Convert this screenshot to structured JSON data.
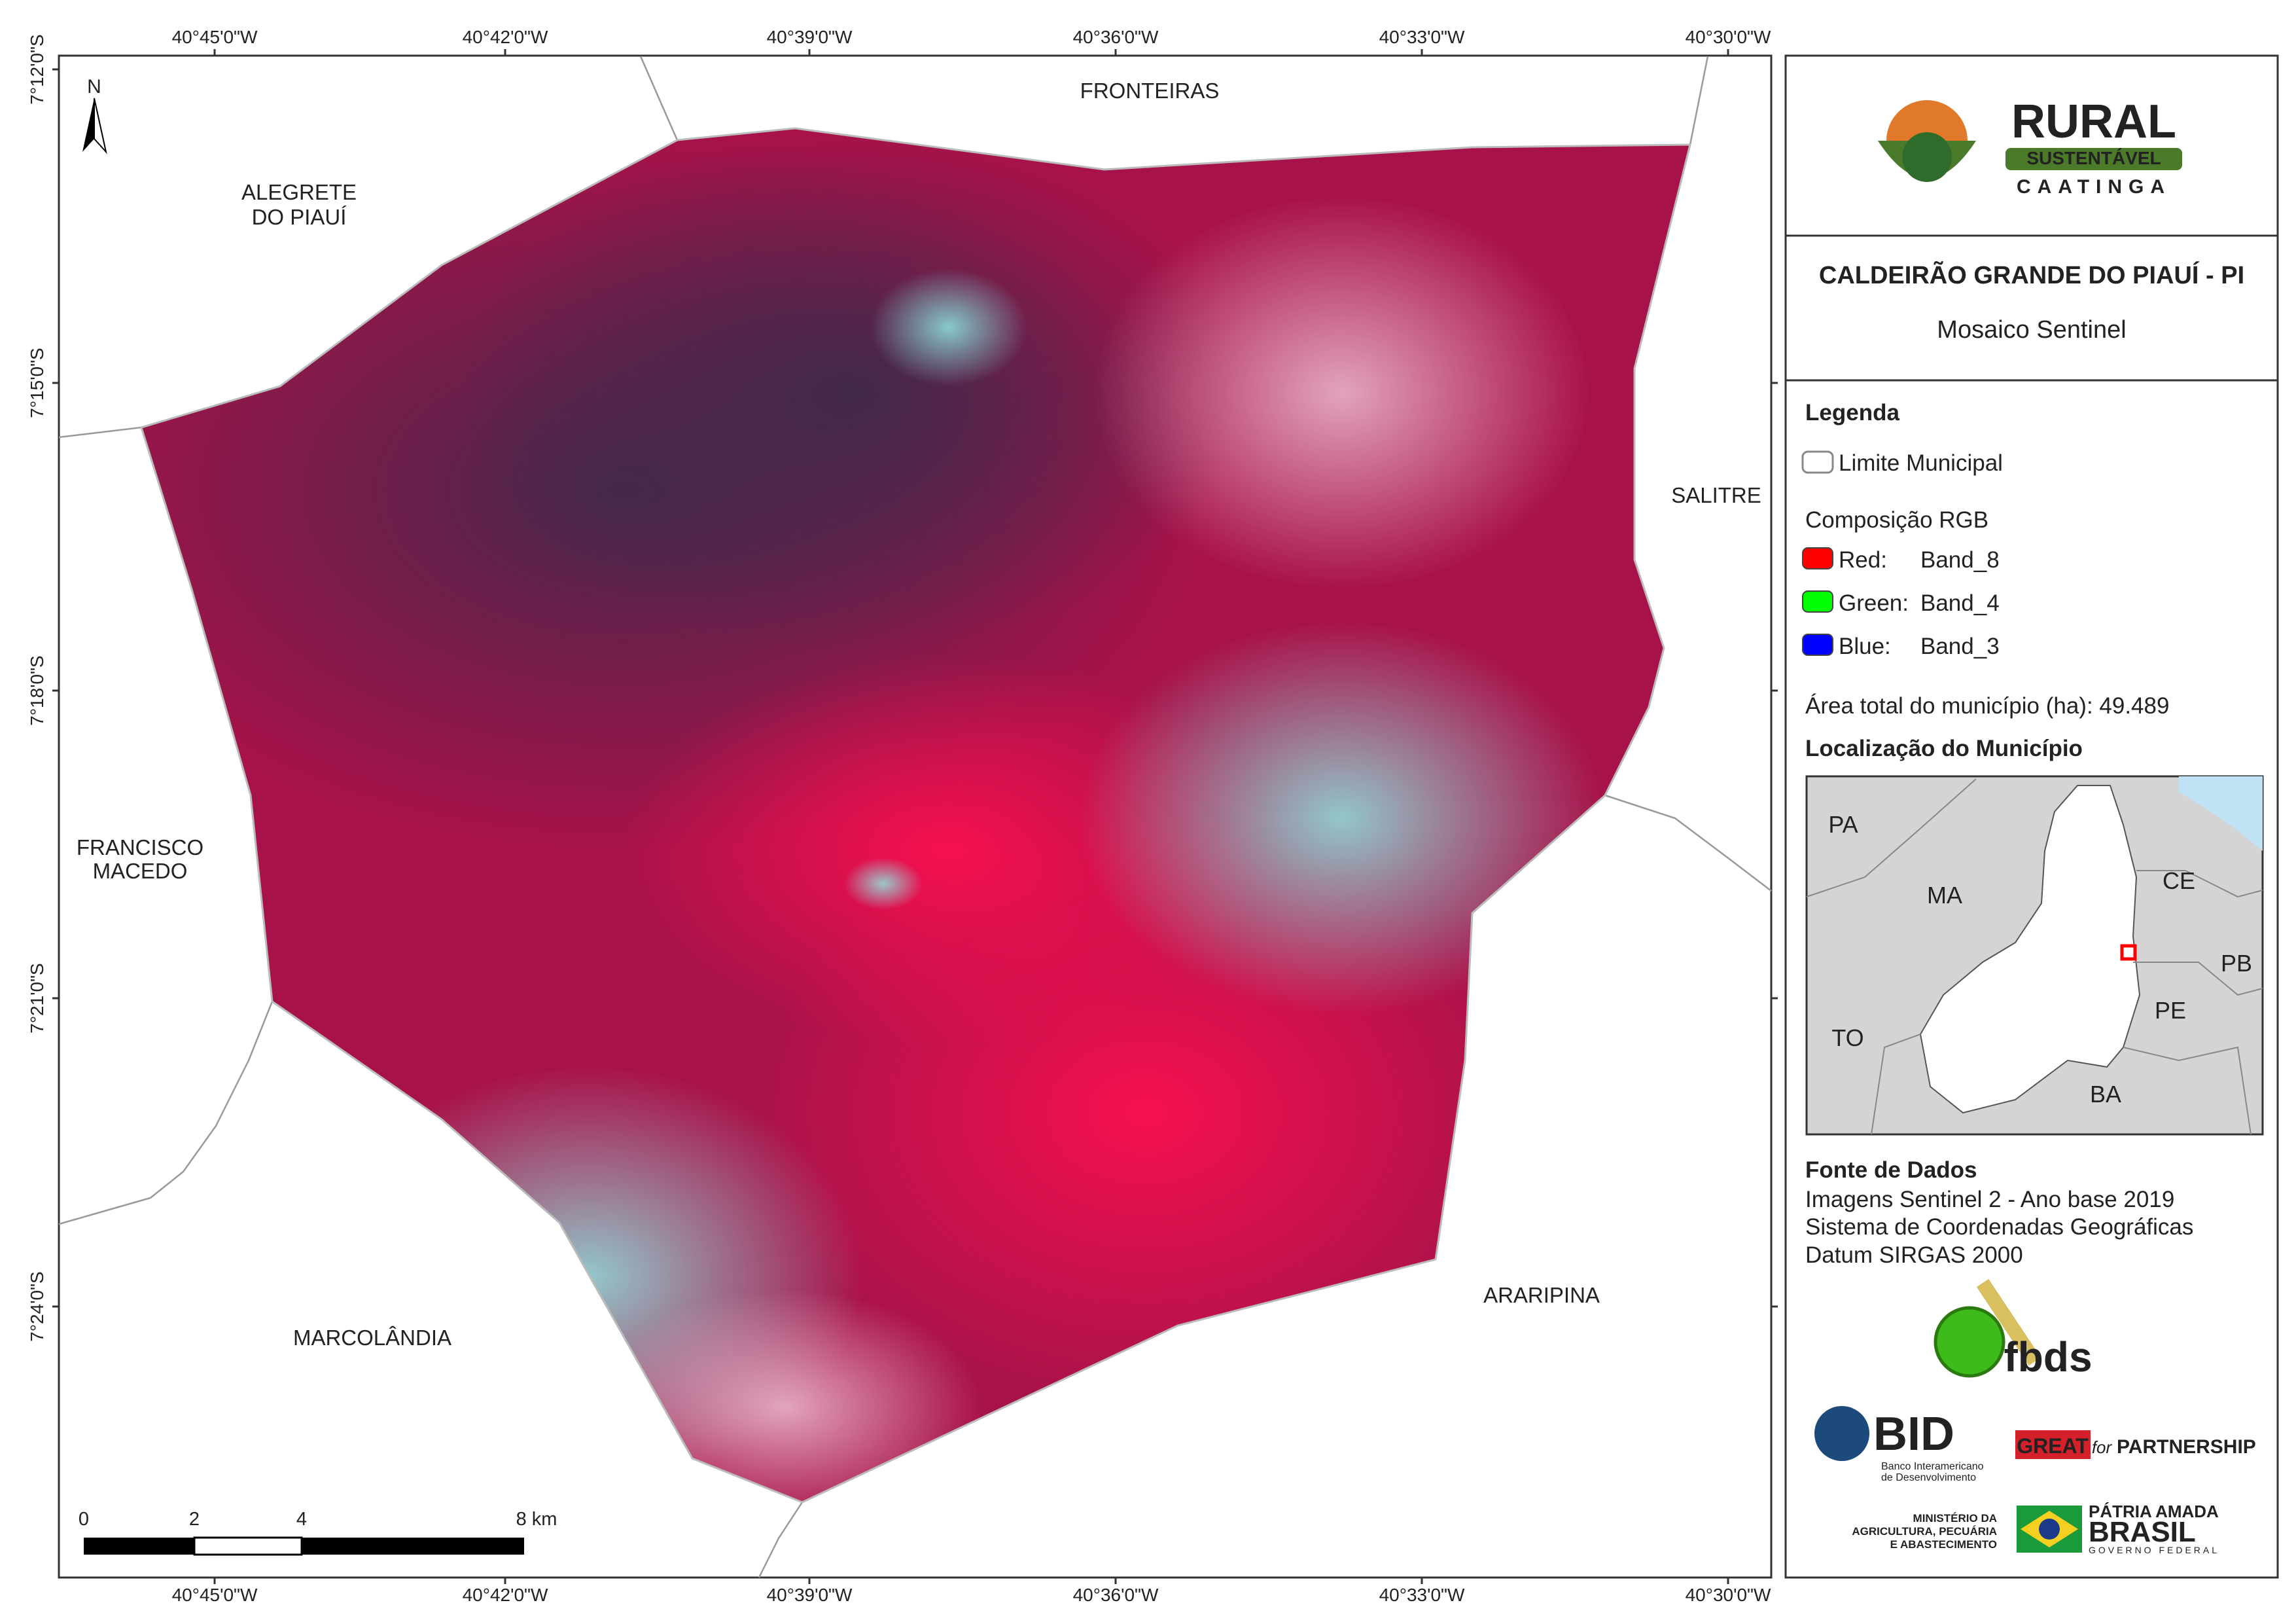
{
  "map": {
    "top_lon_labels": [
      "40°45'0\"W",
      "40°42'0\"W",
      "40°39'0\"W",
      "40°36'0\"W",
      "40°33'0\"W",
      "40°30'0\"W"
    ],
    "bottom_lon_labels": [
      "40°45'0\"W",
      "40°42'0\"W",
      "40°39'0\"W",
      "40°36'0\"W",
      "40°33'0\"W",
      "40°30'0\"W"
    ],
    "left_lat_labels": [
      "7°12'0\"S",
      "7°15'0\"S",
      "7°18'0\"S",
      "7°21'0\"S",
      "7°24'0\"S"
    ],
    "north": "N",
    "places": [
      {
        "lines": [
          "FRONTEIRAS"
        ]
      },
      {
        "lines": [
          "ALEGRETE",
          "DO PIAUÍ"
        ]
      },
      {
        "lines": [
          "SALITRE"
        ]
      },
      {
        "lines": [
          "FRANCISCO",
          "MACEDO"
        ]
      },
      {
        "lines": [
          "MARCOLÂNDIA"
        ]
      },
      {
        "lines": [
          "ARARIPINA"
        ]
      }
    ],
    "scale_labels": [
      "0",
      "2",
      "4",
      "8 km"
    ]
  },
  "panel": {
    "logo": {
      "line1": "RURAL",
      "line2": "SUSTENTÁVEL",
      "line3": "CAATINGA"
    },
    "title": "CALDEIRÃO GRANDE DO PIAUÍ - PI",
    "subtitle": "Mosaico Sentinel",
    "legend": {
      "heading": "Legenda",
      "boundary": "Limite Municipal",
      "rgb_heading": "Composição RGB",
      "bands": [
        {
          "label": "Red:",
          "band": "Band_8",
          "color": "#ff0000"
        },
        {
          "label": "Green:",
          "band": "Band_4",
          "color": "#00ff00"
        },
        {
          "label": "Blue:",
          "band": "Band_3",
          "color": "#0000ff"
        }
      ],
      "area_label": "Área total do município (ha):",
      "area_value": "49.489"
    },
    "location": {
      "heading": "Localização do Município",
      "states": [
        "PA",
        "MA",
        "CE",
        "PB",
        "PE",
        "TO",
        "BA"
      ]
    },
    "sources": {
      "heading": "Fonte de Dados",
      "lines": [
        "Imagens Sentinel 2 - Ano base 2019",
        "Sistema de Coordenadas Geográficas",
        "Datum SIRGAS 2000"
      ]
    },
    "logos": {
      "fbds": "fbds",
      "bid": "BID",
      "bid_sub": [
        "Banco Interamericano",
        "de Desenvolvimento"
      ],
      "great": "GREAT",
      "great_for": "for",
      "great_partnership": "PARTNERSHIP",
      "ministry": [
        "MINISTÉRIO DA",
        "AGRICULTURA, PECUÁRIA",
        "E ABASTECIMENTO"
      ],
      "brasil": [
        "PÁTRIA AMADA",
        "BRASIL",
        "GOVERNO FEDERAL"
      ]
    }
  }
}
